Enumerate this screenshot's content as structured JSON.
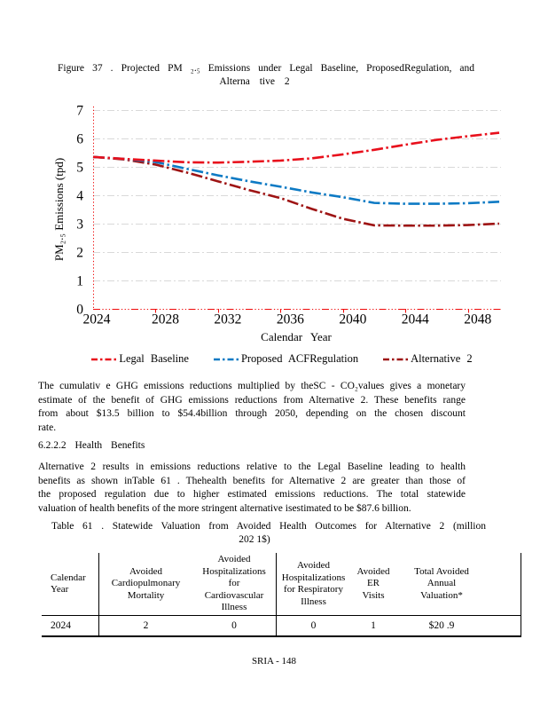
{
  "figure": {
    "caption_line1": "Figure 37 . Projected PM ₂.₅ Emissions under Legal Baseline, ProposedRegulation, and",
    "caption_line2": "Alterna tive 2"
  },
  "chart_data": {
    "type": "line",
    "xlabel": "Calendar Year",
    "ylabel": "PM₂.₅ Emissions (tpd)",
    "xlim": [
      2024,
      2050
    ],
    "ylim": [
      0,
      7
    ],
    "xticks": [
      2024,
      2028,
      2032,
      2036,
      2040,
      2044,
      2048
    ],
    "yticks": [
      0,
      1,
      2,
      3,
      4,
      5,
      6,
      7
    ],
    "grid": true,
    "legend_position": "bottom",
    "x": [
      2024,
      2026,
      2028,
      2030,
      2032,
      2034,
      2036,
      2038,
      2040,
      2042,
      2044,
      2046,
      2048,
      2050
    ],
    "series": [
      {
        "name": "Legal Baseline",
        "color": "#e8101c",
        "values": [
          5.35,
          5.28,
          5.22,
          5.16,
          5.15,
          5.18,
          5.22,
          5.3,
          5.44,
          5.6,
          5.78,
          5.95,
          6.08,
          6.2
        ]
      },
      {
        "name": "Proposed ACFRegulation",
        "color": "#0d7ac4",
        "values": [
          5.35,
          5.28,
          5.17,
          4.93,
          4.7,
          4.49,
          4.3,
          4.1,
          3.93,
          3.73,
          3.7,
          3.7,
          3.72,
          3.77
        ]
      },
      {
        "name": "Alternative 2",
        "color": "#9e1414",
        "values": [
          5.35,
          5.26,
          5.08,
          4.8,
          4.49,
          4.18,
          3.9,
          3.52,
          3.17,
          2.94,
          2.93,
          2.93,
          2.95,
          3.0
        ]
      }
    ]
  },
  "paragraph1": {
    "lines": [
      "The cumulativ e GHG emissions reductions multiplied by theSC - CO₂values gives a monetary",
      "estimate of the benefit of GHG emissions reductions from Alternative 2. These benefits range",
      "from about $13.5 billion to $54.4billion through 2050, depending on the chosen discount",
      "rate."
    ]
  },
  "heading": "6.2.2.2 Health Benefits",
  "paragraph2": {
    "lines": [
      "Alternative 2 results in emissions reductions relative to the Legal Baseline leading to health",
      "benefits as shown inTable 61 . Thehealth benefits for Alternative 2 are greater than those of",
      "the proposed regulation due to higher estimated emissions reductions. The total statewide",
      "valuation of health benefits of the more stringent alternative isestimated to be $87.6 billion."
    ]
  },
  "table_caption": {
    "line1": "Table 61 . Statewide Valuation from Avoided Health Outcomes for Alternative 2 (million",
    "line2": "202 1$)"
  },
  "table": {
    "headers": [
      "Calendar\nYear",
      "Avoided\nCardiopulmonary\nMortality",
      "Avoided\nHospitalizations\nfor\nCardiovascular\nIllness",
      "Avoided\nHospitalizations\nfor Respiratory\nIllness",
      "Avoided\nER\nVisits",
      "Total Avoided\nAnnual\nValuation*"
    ],
    "rows": [
      [
        "2024",
        "2",
        "0",
        "0",
        "1",
        "$20 .9"
      ]
    ]
  },
  "footer": "SRIA - 148"
}
